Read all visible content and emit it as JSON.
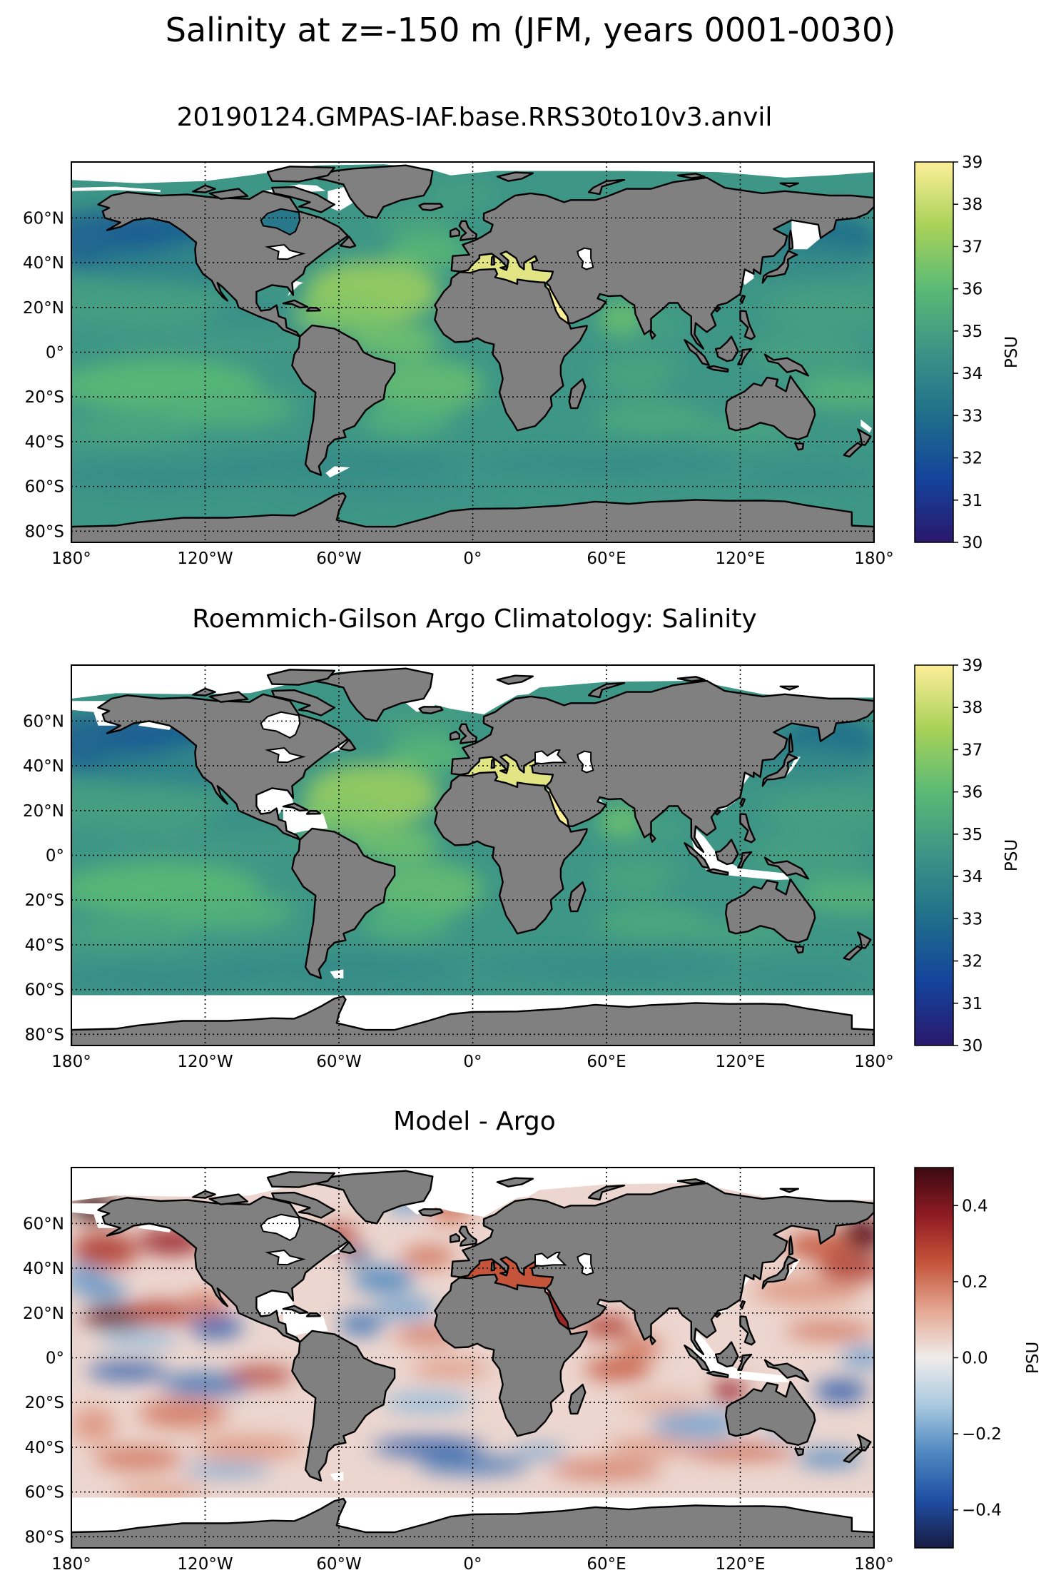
{
  "figure": {
    "suptitle": "Salinity at z=-150 m (JFM, years 0001-0030)"
  },
  "map_axes": {
    "lon_ticks": [
      "180°",
      "120°W",
      "60°W",
      "0°",
      "60°E",
      "120°E",
      "180°"
    ],
    "lat_ticks": [
      "60°N",
      "40°N",
      "20°N",
      "0°",
      "20°S",
      "40°S",
      "60°S",
      "80°S"
    ],
    "lon_values": [
      -180,
      -120,
      -60,
      0,
      60,
      120,
      180
    ],
    "lat_values": [
      60,
      40,
      20,
      0,
      -20,
      -40,
      -60,
      -80
    ],
    "lat_range": [
      -85,
      85
    ],
    "lon_range": [
      -180,
      180
    ],
    "grid": "dotted",
    "land_color": "#808080",
    "nodata_color": "#ffffff"
  },
  "panels": [
    {
      "key": "model",
      "title": "20190124.GMPAS-IAF.base.RRS30to10v3.anvil",
      "colorbar": {
        "label": "PSU",
        "ticks": [
          "30",
          "31",
          "32",
          "33",
          "34",
          "35",
          "36",
          "37",
          "38",
          "39"
        ],
        "range": [
          30,
          39
        ],
        "colormap": "haline",
        "colors": [
          "#2a186c",
          "#14439c",
          "#206e8b",
          "#3c9387",
          "#5aba75",
          "#a9d259",
          "#fdee99"
        ]
      }
    },
    {
      "key": "obs",
      "title": "Roemmich-Gilson Argo Climatology: Salinity",
      "colorbar": {
        "label": "PSU",
        "ticks": [
          "30",
          "31",
          "32",
          "33",
          "34",
          "35",
          "36",
          "37",
          "38",
          "39"
        ],
        "range": [
          30,
          39
        ],
        "colormap": "haline",
        "colors": [
          "#2a186c",
          "#14439c",
          "#206e8b",
          "#3c9387",
          "#5aba75",
          "#a9d259",
          "#fdee99"
        ]
      }
    },
    {
      "key": "diff",
      "title": "Model - Argo",
      "colorbar": {
        "label": "PSU",
        "ticks": [
          "0.4",
          "0.2",
          "0.0",
          "−0.2",
          "−0.4"
        ],
        "tick_values": [
          0.4,
          0.2,
          0.0,
          -0.2,
          -0.4
        ],
        "range": [
          -0.5,
          0.5
        ],
        "colormap": "balance",
        "colors": [
          "#181c43",
          "#1f4ea3",
          "#4e88c0",
          "#a9c9e0",
          "#f0eceb",
          "#e4a792",
          "#c4543a",
          "#8f1b23",
          "#3c0912"
        ]
      }
    }
  ]
}
